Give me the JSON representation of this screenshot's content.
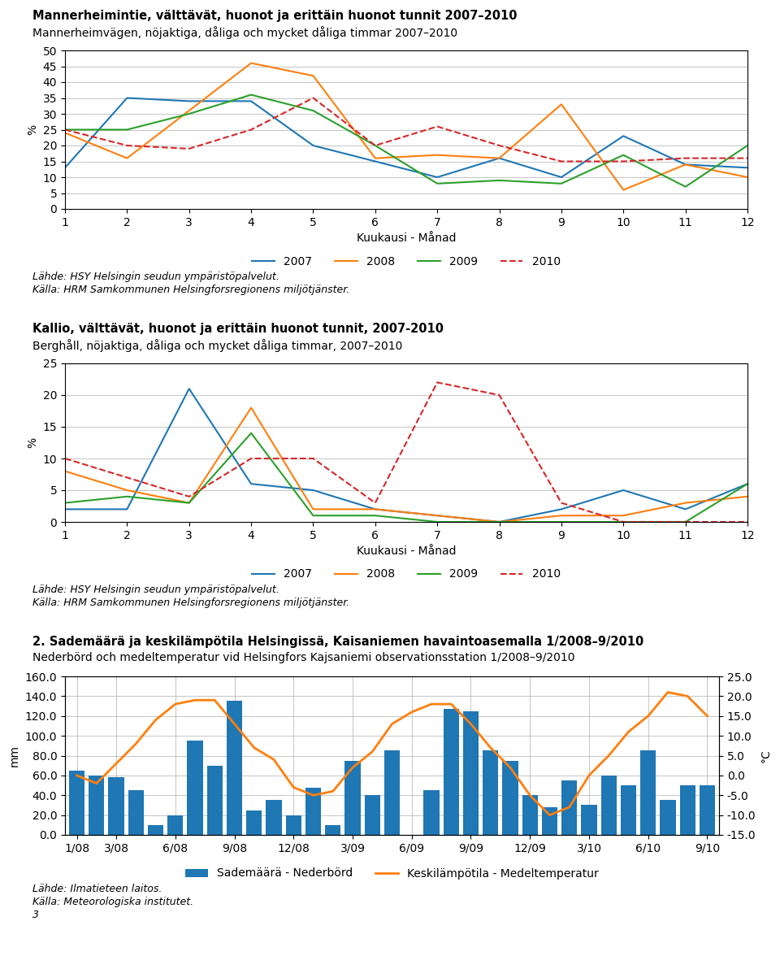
{
  "chart_data": [
    {
      "type": "line",
      "title": "Mannerheimintie, välttävät, huonot ja erittäin huonot tunnit 2007–2010",
      "subtitle": "Mannerheimvägen, nöjaktiga, dåliga och mycket dåliga timmar 2007–2010",
      "xlabel": "Kuukausi - Månad",
      "ylabel": "%",
      "x": [
        1,
        2,
        3,
        4,
        5,
        6,
        7,
        8,
        9,
        10,
        11,
        12
      ],
      "xlim": [
        1,
        12
      ],
      "xticks": [
        1,
        2,
        3,
        4,
        5,
        6,
        7,
        8,
        9,
        10,
        11,
        12
      ],
      "ylim": [
        0,
        50
      ],
      "yticks": [
        0,
        5,
        10,
        15,
        20,
        25,
        30,
        35,
        40,
        45,
        50
      ],
      "grid": "y",
      "legend": "lower center",
      "series": [
        {
          "name": "2007",
          "values": [
            13,
            35,
            34,
            34,
            20,
            15,
            10,
            16,
            10,
            23,
            14,
            13
          ]
        },
        {
          "name": "2008",
          "values": [
            24,
            16,
            31,
            46,
            42,
            16,
            17,
            16,
            33,
            6,
            14,
            10
          ]
        },
        {
          "name": "2009",
          "values": [
            25,
            25,
            30,
            36,
            31,
            20,
            8,
            9,
            8,
            17,
            7,
            20
          ]
        },
        {
          "name": "2010",
          "values": [
            25,
            20,
            19,
            25,
            35,
            20,
            26,
            20,
            15,
            15,
            16,
            16
          ],
          "line_style": "dashed"
        }
      ],
      "annotations": [
        "Lähde: HSY Helsingin seudun ympäristöpalvelut.",
        "Källa: HRM Samkommunen Helsingforsregionens miljötjänster."
      ]
    },
    {
      "type": "line",
      "title": "Kallio, välttävät, huonot ja erittäin huonot tunnit, 2007-2010",
      "subtitle": "Berghåll, nöjaktiga, dåliga och mycket dåliga timmar, 2007–2010",
      "xlabel": "Kuukausi - Månad",
      "ylabel": "%",
      "x": [
        1,
        2,
        3,
        4,
        5,
        6,
        7,
        8,
        9,
        10,
        11,
        12
      ],
      "xlim": [
        1,
        12
      ],
      "xticks": [
        1,
        2,
        3,
        4,
        5,
        6,
        7,
        8,
        9,
        10,
        11,
        12
      ],
      "ylim": [
        0,
        25
      ],
      "yticks": [
        0,
        5,
        10,
        15,
        20,
        25
      ],
      "grid": "y",
      "legend": "lower center",
      "series": [
        {
          "name": "2007",
          "values": [
            2,
            2,
            21,
            6,
            5,
            2,
            1,
            0,
            2,
            5,
            2,
            6
          ]
        },
        {
          "name": "2008",
          "values": [
            8,
            5,
            3,
            18,
            2,
            2,
            1,
            0,
            1,
            1,
            3,
            4
          ]
        },
        {
          "name": "2009",
          "values": [
            3,
            4,
            3,
            14,
            1,
            1,
            0,
            0,
            0,
            0,
            0,
            6
          ]
        },
        {
          "name": "2010",
          "values": [
            10,
            7,
            4,
            10,
            10,
            3,
            22,
            20,
            3,
            0,
            0,
            0
          ],
          "line_style": "dashed"
        }
      ],
      "annotations": [
        "Lähde: HSY Helsingin seudun ympäristöpalvelut.",
        "Källa: HRM Samkommunen Helsingforsregionens miljötjänster."
      ]
    },
    {
      "type": "bar",
      "title": "2. Sademäärä ja keskilämpötila Helsingissä, Kaisaniemen havaintoasemalla 1/2008–9/2010",
      "subtitle": "Nederbörd och medeltemperatur vid Helsingfors Kajsaniemi observationsstation 1/2008–9/2010",
      "ylabel": "mm",
      "y2label": "°C",
      "categories": [
        "1/08",
        null,
        "3/08",
        null,
        null,
        "6/08",
        null,
        null,
        "9/08",
        null,
        null,
        "12/08",
        null,
        null,
        "3/09",
        null,
        null,
        "6/09",
        null,
        null,
        "9/09",
        null,
        null,
        "12/09",
        null,
        null,
        "3/10",
        null,
        null,
        "6/10",
        null,
        null,
        "9/10"
      ],
      "ylim": [
        0,
        160
      ],
      "yticks": [
        {
          "value": 0,
          "label": "0.0"
        },
        {
          "value": 20,
          "label": "20.0"
        },
        {
          "value": 40,
          "label": "40.0"
        },
        {
          "value": 60,
          "label": "60.0"
        },
        {
          "value": 80,
          "label": "80.0"
        },
        {
          "value": 100,
          "label": "100.0"
        },
        {
          "value": 120,
          "label": "120.0"
        },
        {
          "value": 140,
          "label": "140.0"
        },
        {
          "value": 160,
          "label": "160.0"
        }
      ],
      "y2lim": [
        -15,
        25
      ],
      "y2ticks": [
        {
          "value": -15,
          "label": "-15.0"
        },
        {
          "value": -10,
          "label": "-10.0"
        },
        {
          "value": -5,
          "label": "-5.0"
        },
        {
          "value": 0,
          "label": "0.0"
        },
        {
          "value": 5,
          "label": "5.0"
        },
        {
          "value": 10,
          "label": "10.0"
        },
        {
          "value": 15,
          "label": "15.0"
        },
        {
          "value": 20,
          "label": "20.0"
        },
        {
          "value": 25,
          "label": "25.0"
        }
      ],
      "grid": true,
      "legend": "lower center",
      "series": [
        {
          "name": "Sademäärä - Nederbörd",
          "type": "bar",
          "values": [
            65,
            60,
            58,
            45,
            10,
            20,
            95,
            70,
            135,
            25,
            35,
            20,
            48,
            10,
            75,
            40,
            85,
            0,
            45,
            127,
            125,
            85,
            75,
            40,
            28,
            55,
            30,
            60,
            50,
            85,
            35,
            50,
            50
          ]
        },
        {
          "name": "Keskilämpötila - Medeltemperatur",
          "type": "line",
          "axis": "y2",
          "values": [
            0,
            -2,
            3,
            8,
            14,
            18,
            19,
            19,
            13,
            7,
            4,
            -3,
            -5,
            -4,
            2,
            6,
            13,
            16,
            18,
            18,
            13,
            7,
            2,
            -5,
            -10,
            -8,
            0,
            5,
            11,
            15,
            21,
            20,
            15
          ]
        }
      ],
      "annotations": [
        "Lähde: Ilmatieteen laitos.",
        "Källa: Meteorologiska institutet.",
        "3"
      ]
    }
  ]
}
